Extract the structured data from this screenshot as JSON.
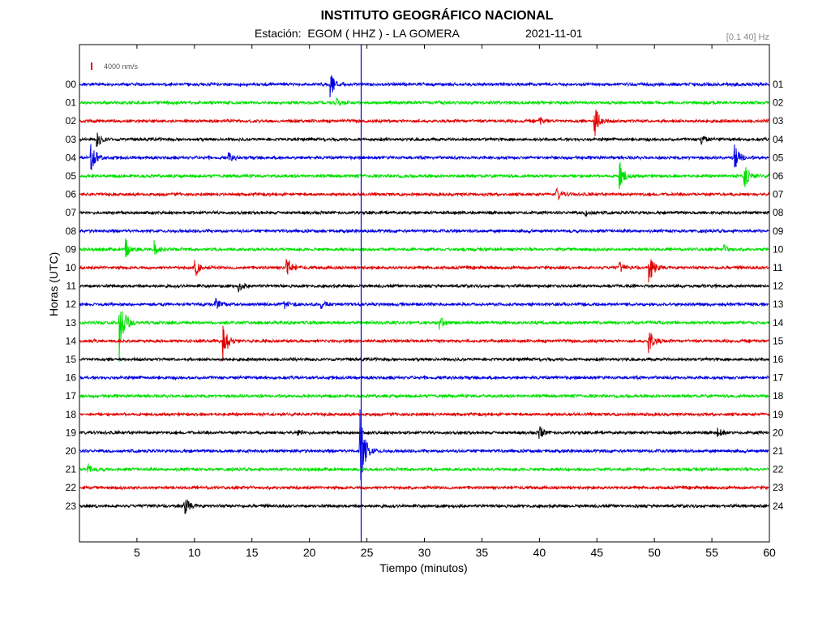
{
  "header": {
    "title": "INSTITUTO GEOGRÁFICO NACIONAL",
    "station": "Estación:  EGOM ( HHZ ) - LA GOMERA",
    "date": "2021-11-01",
    "filter": "[0.1 40] Hz"
  },
  "chart_data": {
    "type": "line",
    "title": "INSTITUTO GEOGRÁFICO NACIONAL",
    "xlabel": "Tiempo (minutos)",
    "ylabel": "Horas (UTC)",
    "xlim": [
      0,
      60
    ],
    "x_ticks": [
      "5",
      "10",
      "15",
      "20",
      "25",
      "30",
      "35",
      "40",
      "45",
      "50",
      "55",
      "60"
    ],
    "scale_label": "4000 nm/s",
    "left_labels": [
      "00",
      "01",
      "02",
      "03",
      "04",
      "05",
      "06",
      "07",
      "08",
      "09",
      "10",
      "11",
      "12",
      "13",
      "14",
      "15",
      "16",
      "17",
      "18",
      "19",
      "20",
      "21",
      "22",
      "23"
    ],
    "right_labels": [
      "01",
      "02",
      "03",
      "04",
      "05",
      "06",
      "07",
      "08",
      "09",
      "10",
      "11",
      "12",
      "13",
      "14",
      "15",
      "16",
      "17",
      "18",
      "19",
      "20",
      "21",
      "22",
      "23",
      "24"
    ],
    "trace_colors": [
      "#0000e0",
      "#00e000",
      "#e00000",
      "#000000"
    ],
    "grid": false,
    "marker_line": {
      "minute": 24.5,
      "color": "#0000e0"
    },
    "events": [
      {
        "hour": 0,
        "minute": 21.8,
        "amp": 0.7
      },
      {
        "hour": 1,
        "minute": 22.3,
        "amp": 0.25
      },
      {
        "hour": 2,
        "minute": 44.8,
        "amp": 0.9
      },
      {
        "hour": 2,
        "minute": 40.0,
        "amp": 0.2
      },
      {
        "hour": 3,
        "minute": 1.5,
        "amp": 0.4
      },
      {
        "hour": 3,
        "minute": 54.0,
        "amp": 0.35
      },
      {
        "hour": 4,
        "minute": 1.0,
        "amp": 0.9
      },
      {
        "hour": 4,
        "minute": 13.0,
        "amp": 0.25
      },
      {
        "hour": 4,
        "minute": 57.0,
        "amp": 0.7
      },
      {
        "hour": 5,
        "minute": 47.0,
        "amp": 0.8
      },
      {
        "hour": 5,
        "minute": 57.8,
        "amp": 0.9
      },
      {
        "hour": 6,
        "minute": 41.5,
        "amp": 0.35
      },
      {
        "hour": 7,
        "minute": 44.0,
        "amp": 0.2
      },
      {
        "hour": 9,
        "minute": 4.0,
        "amp": 0.6
      },
      {
        "hour": 9,
        "minute": 6.5,
        "amp": 0.45
      },
      {
        "hour": 9,
        "minute": 56.0,
        "amp": 0.25
      },
      {
        "hour": 10,
        "minute": 10.0,
        "amp": 0.6
      },
      {
        "hour": 10,
        "minute": 18.0,
        "amp": 0.7
      },
      {
        "hour": 10,
        "minute": 47.0,
        "amp": 0.3
      },
      {
        "hour": 10,
        "minute": 49.5,
        "amp": 1.0
      },
      {
        "hour": 11,
        "minute": 13.8,
        "amp": 0.3
      },
      {
        "hour": 12,
        "minute": 11.8,
        "amp": 0.3
      },
      {
        "hour": 12,
        "minute": 17.8,
        "amp": 0.2
      },
      {
        "hour": 12,
        "minute": 21.0,
        "amp": 0.25
      },
      {
        "hour": 13,
        "minute": 3.5,
        "amp": 2.2
      },
      {
        "hour": 13,
        "minute": 31.3,
        "amp": 0.35
      },
      {
        "hour": 14,
        "minute": 12.5,
        "amp": 1.1
      },
      {
        "hour": 14,
        "minute": 49.5,
        "amp": 0.8
      },
      {
        "hour": 19,
        "minute": 19.0,
        "amp": 0.25
      },
      {
        "hour": 19,
        "minute": 40.0,
        "amp": 0.35
      },
      {
        "hour": 19,
        "minute": 55.5,
        "amp": 0.25
      },
      {
        "hour": 20,
        "minute": 24.4,
        "amp": 2.5
      },
      {
        "hour": 21,
        "minute": 0.7,
        "amp": 0.35
      },
      {
        "hour": 23,
        "minute": 9.1,
        "amp": 0.6
      }
    ]
  }
}
